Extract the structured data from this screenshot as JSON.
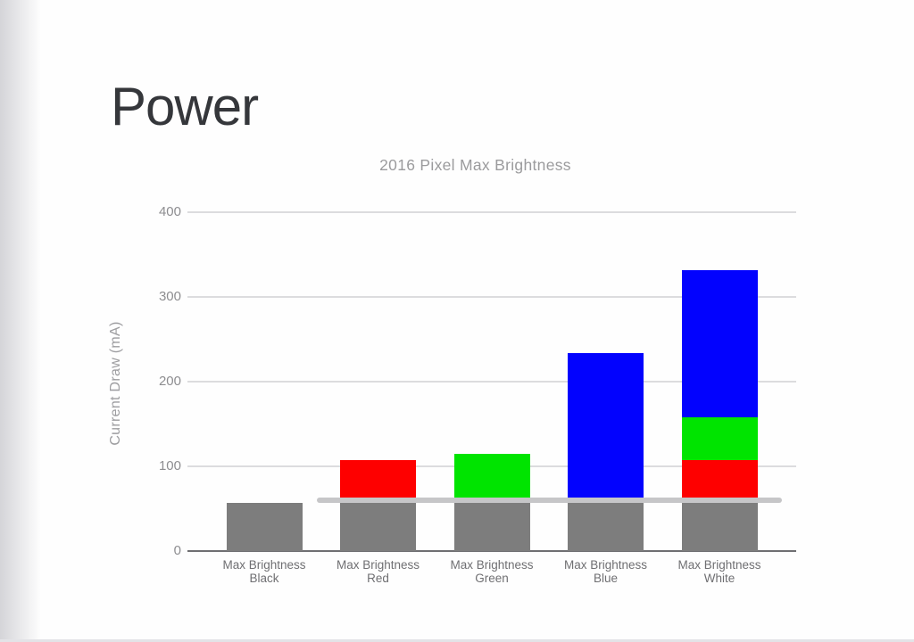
{
  "slide": {
    "title": "Power"
  },
  "chart_data": {
    "type": "bar",
    "stacked": true,
    "title": "2016 Pixel Max Brightness",
    "xlabel": "",
    "ylabel": "Current Draw (mA)",
    "ylim": [
      0,
      400
    ],
    "yticks": [
      0,
      100,
      200,
      300,
      400
    ],
    "grid": true,
    "legend_position": "none",
    "categories": [
      {
        "lines": [
          "Max Brightness",
          "Black"
        ]
      },
      {
        "lines": [
          "Max Brightness",
          "Red"
        ]
      },
      {
        "lines": [
          "Max Brightness",
          "Green"
        ]
      },
      {
        "lines": [
          "Max Brightness",
          "Blue"
        ]
      },
      {
        "lines": [
          "Max Brightness",
          "White"
        ]
      }
    ],
    "series": [
      {
        "name": "gray",
        "color": "#7d7d7d",
        "values": [
          57,
          57,
          57,
          57,
          57
        ]
      },
      {
        "name": "red",
        "color": "#fe0000",
        "values": [
          0,
          50,
          0,
          0,
          50
        ]
      },
      {
        "name": "green",
        "color": "#00e400",
        "values": [
          0,
          0,
          58,
          0,
          51
        ]
      },
      {
        "name": "blue",
        "color": "#0202fe",
        "values": [
          0,
          0,
          0,
          177,
          174
        ]
      }
    ],
    "totals_mA": [
      57,
      107,
      115,
      234,
      332
    ],
    "reference_line": {
      "value": 57,
      "color": "#c6c6c8"
    }
  }
}
